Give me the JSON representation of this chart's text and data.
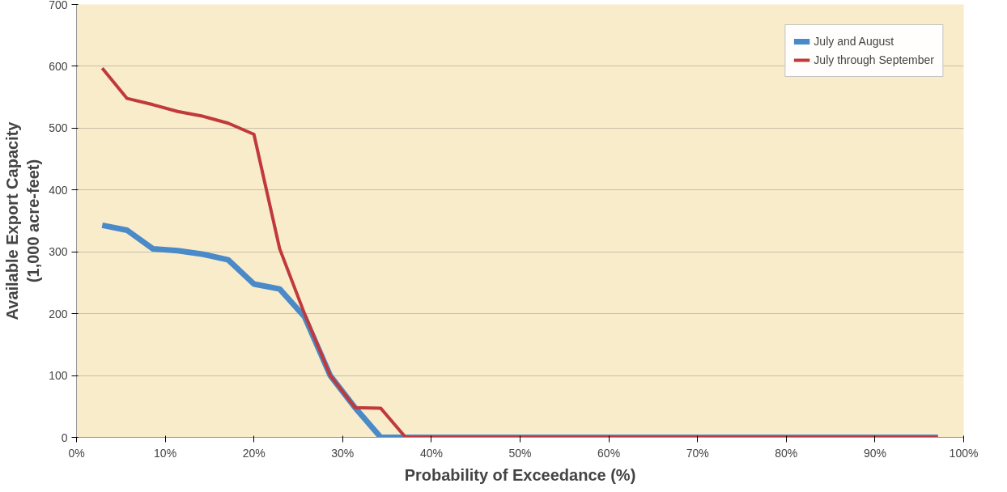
{
  "chart_data": {
    "type": "line",
    "xlabel": "Probability of Exceedance (%)",
    "ylabel": "Available Export Capacity\n(1,000 acre-feet)",
    "x": [
      2.9,
      5.7,
      8.6,
      11.4,
      14.3,
      17.1,
      20.0,
      22.9,
      25.7,
      28.6,
      31.4,
      34.3,
      37.1,
      97.1
    ],
    "series": [
      {
        "name": "July and August",
        "color": "#4a8ac9",
        "values": [
          343,
          335,
          305,
          302,
          296,
          287,
          248,
          240,
          195,
          100,
          48,
          0,
          0,
          0
        ]
      },
      {
        "name": "July through September",
        "color": "#c0393b",
        "values": [
          597,
          548,
          538,
          527,
          519,
          508,
          490,
          305,
          200,
          100,
          48,
          47,
          0,
          0
        ]
      }
    ],
    "xlim": [
      0,
      100
    ],
    "xticks": [
      {
        "value": 0,
        "label": "0%"
      },
      {
        "value": 10,
        "label": "10%"
      },
      {
        "value": 20,
        "label": "20%"
      },
      {
        "value": 30,
        "label": "30%"
      },
      {
        "value": 40,
        "label": "40%"
      },
      {
        "value": 50,
        "label": "50%"
      },
      {
        "value": 60,
        "label": "60%"
      },
      {
        "value": 70,
        "label": "70%"
      },
      {
        "value": 80,
        "label": "80%"
      },
      {
        "value": 90,
        "label": "90%"
      },
      {
        "value": 100,
        "label": "100%"
      }
    ],
    "ylim": [
      0,
      700
    ],
    "yticks": [
      0,
      100,
      200,
      300,
      400,
      500,
      600,
      700
    ],
    "grid": "y",
    "legend": "top right",
    "marker": "none",
    "line_style": "solid"
  }
}
